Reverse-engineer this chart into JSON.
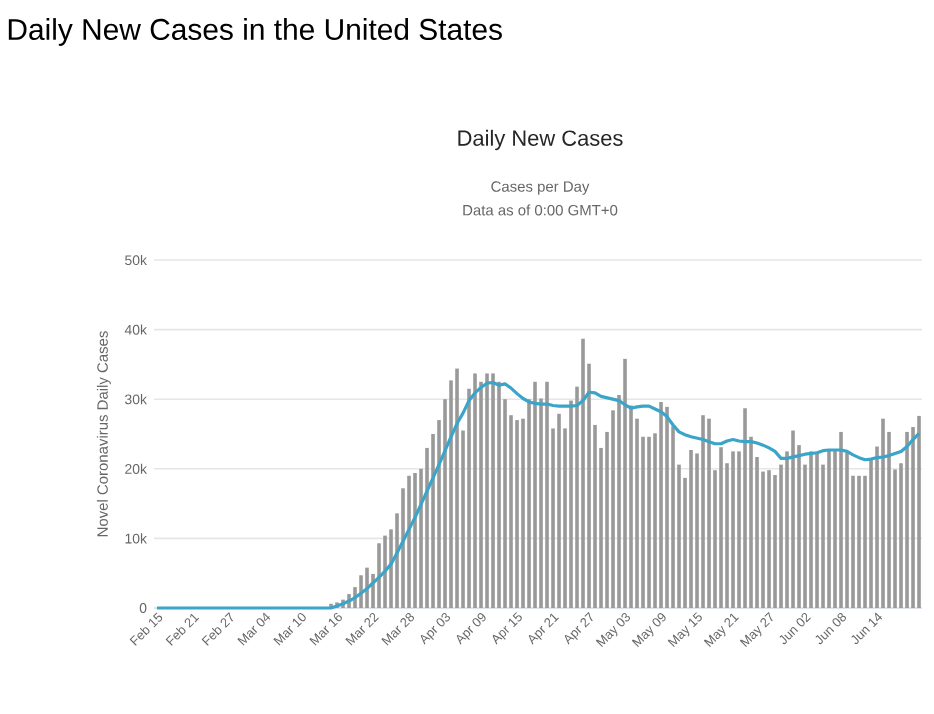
{
  "chart_data": {
    "type": "bar",
    "title": "Daily New Cases",
    "subtitle": "Cases per Day",
    "annotations": [
      "Daily New Cases in the United States",
      "Data as of 0:00 GMT+0"
    ],
    "ylabel": "Novel Coronavirus Daily Cases",
    "categories": [
      "Feb 15",
      null,
      null,
      null,
      null,
      null,
      "Feb 21",
      null,
      null,
      null,
      null,
      null,
      "Feb 27",
      null,
      null,
      null,
      null,
      null,
      "Mar 04",
      null,
      null,
      null,
      null,
      null,
      "Mar 10",
      null,
      null,
      null,
      null,
      null,
      "Mar 16",
      null,
      null,
      null,
      null,
      null,
      "Mar 22",
      null,
      null,
      null,
      null,
      null,
      "Mar 28",
      null,
      null,
      null,
      null,
      null,
      "Apr 03",
      null,
      null,
      null,
      null,
      null,
      "Apr 09",
      null,
      null,
      null,
      null,
      null,
      "Apr 15",
      null,
      null,
      null,
      null,
      null,
      "Apr 21",
      null,
      null,
      null,
      null,
      null,
      "Apr 27",
      null,
      null,
      null,
      null,
      null,
      "May 03",
      null,
      null,
      null,
      null,
      null,
      "May 09",
      null,
      null,
      null,
      null,
      null,
      "May 15",
      null,
      null,
      null,
      null,
      null,
      "May 21",
      null,
      null,
      null,
      null,
      null,
      "May 27",
      null,
      null,
      null,
      null,
      null,
      "Jun 02",
      null,
      null,
      null,
      null,
      null,
      "Jun 08",
      null,
      null,
      null,
      null,
      null,
      "Jun 14",
      null,
      null,
      null,
      null,
      null,
      null,
      null
    ],
    "series": [
      {
        "color": "#999999",
        "values": [
          0,
          0,
          0,
          0,
          0,
          0,
          0,
          0,
          0,
          0,
          0,
          0,
          0,
          0,
          0,
          0,
          0,
          0,
          0,
          0,
          0,
          0,
          0,
          0,
          0,
          0,
          0,
          0,
          null,
          600,
          800,
          1200,
          2000,
          3000,
          4700,
          5800,
          4900,
          9300,
          10400,
          11300,
          13600,
          17200,
          19000,
          19400,
          20000,
          23000,
          25000,
          27000,
          30000,
          32700,
          34400,
          25500,
          31500,
          33700,
          32500,
          33700,
          33700,
          32500,
          30000,
          27700,
          27000,
          27200,
          30000,
          32500,
          30100,
          32500,
          25800,
          27900,
          25800,
          29800,
          31800,
          38700,
          35100,
          26300,
          23000,
          25300,
          28400,
          30600,
          35800,
          29100,
          27200,
          24600,
          24600,
          25100,
          29600,
          28900,
          26100,
          20600,
          18700,
          22700,
          22200,
          27700,
          27200,
          19800,
          23100,
          20800,
          22500,
          22500,
          28700,
          24600,
          21700,
          19600,
          19800,
          19100,
          20600,
          22500,
          25500,
          23400,
          20600,
          22500,
          22200,
          20600,
          22700,
          22700,
          25300,
          22300,
          19000,
          19000,
          19000,
          21500,
          23200,
          27200,
          25300,
          19900,
          20800,
          25300,
          26000,
          27600
        ]
      },
      {
        "type": "line",
        "color": "#3aa5c9",
        "values": [
          0,
          0,
          0,
          0,
          0,
          0,
          0,
          0,
          0,
          0,
          0,
          0,
          0,
          0,
          0,
          0,
          0,
          0,
          0,
          0,
          0,
          0,
          0,
          0,
          0,
          0,
          0,
          0,
          0,
          0,
          300,
          600,
          1000,
          1500,
          2100,
          2800,
          3600,
          4400,
          5300,
          6300,
          7900,
          9600,
          11300,
          13000,
          14900,
          16800,
          18700,
          20600,
          22600,
          24600,
          26500,
          28000,
          29800,
          30900,
          31700,
          32300,
          32400,
          32000,
          32200,
          31600,
          30800,
          30100,
          29600,
          29400,
          29300,
          29300,
          29100,
          29000,
          29000,
          29000,
          29100,
          29800,
          31000,
          30900,
          30400,
          30200,
          30000,
          29800,
          29200,
          28700,
          28900,
          29000,
          29000,
          28600,
          28200,
          27500,
          26300,
          25300,
          24900,
          24600,
          24400,
          24200,
          23900,
          23600,
          23600,
          24000,
          24200,
          24000,
          23900,
          23900,
          23700,
          23400,
          23000,
          22500,
          21500,
          21500,
          21700,
          21900,
          22100,
          22200,
          22300,
          22600,
          22700,
          22700,
          22700,
          22500,
          22000,
          21600,
          21300,
          21400,
          21600,
          21700,
          21900,
          22200,
          22500,
          23200,
          24200,
          25100
        ]
      }
    ],
    "ylim": [
      0,
      50000
    ],
    "yticks": [
      {
        "value": 0,
        "label": "0"
      },
      {
        "value": 10000,
        "label": "10k"
      },
      {
        "value": 20000,
        "label": "20k"
      },
      {
        "value": 30000,
        "label": "30k"
      },
      {
        "value": 40000,
        "label": "40k"
      },
      {
        "value": 50000,
        "label": "50k"
      }
    ],
    "grid": "y"
  }
}
